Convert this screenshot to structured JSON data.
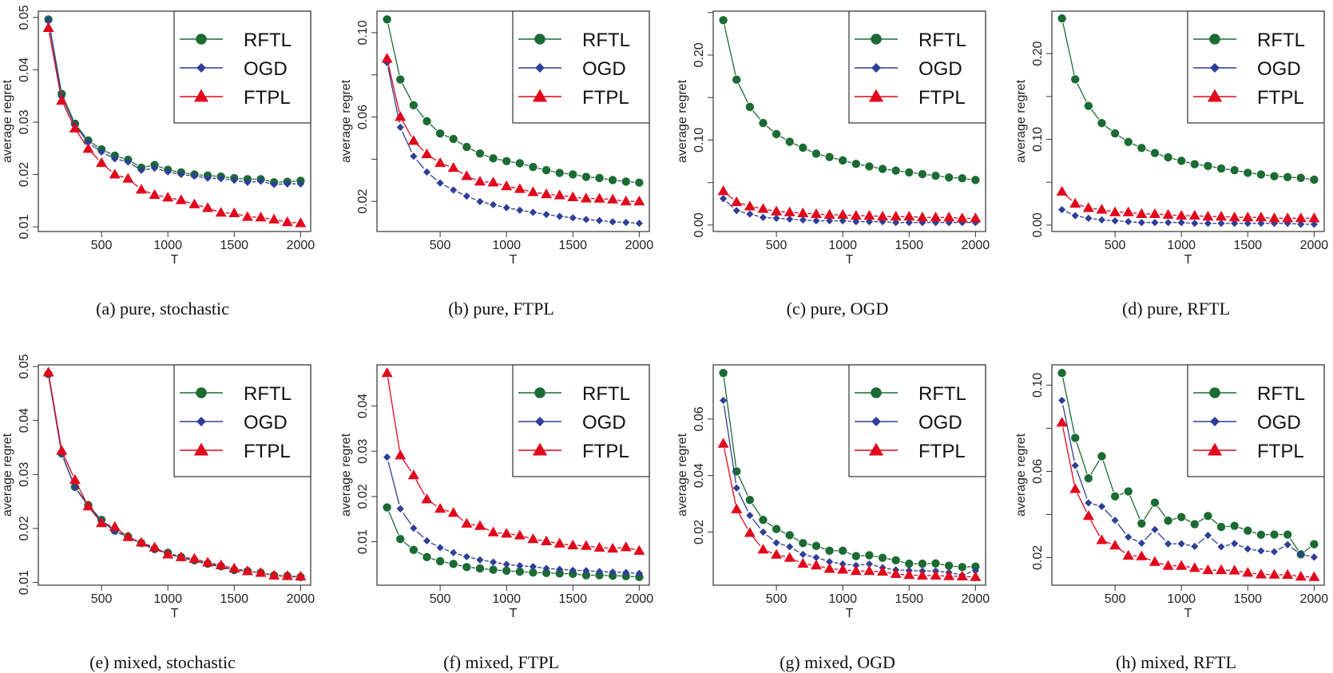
{
  "legend": [
    "RFTL",
    "OGD",
    "FTPL"
  ],
  "colors": {
    "RFTL": "#1b6b33",
    "OGD": "#2f3f98",
    "FTPL": "#e2061c"
  },
  "markers": {
    "RFTL": "circle",
    "OGD": "diamond",
    "FTPL": "triangle"
  },
  "chart_data": [
    {
      "type": "line",
      "caption": "(a) pure, stochastic",
      "xlabel": "T",
      "ylabel": "average regret",
      "x": [
        100,
        200,
        300,
        400,
        500,
        600,
        700,
        800,
        900,
        1000,
        1100,
        1200,
        1300,
        1400,
        1500,
        1600,
        1700,
        1800,
        1900,
        2000
      ],
      "xlim": [
        24,
        2076
      ],
      "xticks": [
        500,
        1000,
        1500,
        2000
      ],
      "xtick_labels": [
        "500",
        "1000",
        "1500",
        "2000"
      ],
      "ylim": [
        0.0091,
        0.0512
      ],
      "yticks": [
        0.01,
        0.02,
        0.03,
        0.04,
        0.05
      ],
      "ytick_labels": [
        "0.01",
        "0.02",
        "0.03",
        "0.04",
        "0.05"
      ],
      "grid": false,
      "legend_position": "top-right",
      "series": [
        {
          "name": "RFTL",
          "values": [
            0.0496,
            0.0354,
            0.0297,
            0.0265,
            0.0248,
            0.0236,
            0.0228,
            0.0213,
            0.0218,
            0.0209,
            0.0204,
            0.02,
            0.0198,
            0.0196,
            0.0193,
            0.0191,
            0.0191,
            0.0185,
            0.0186,
            0.0188
          ]
        },
        {
          "name": "OGD",
          "values": [
            0.0495,
            0.0348,
            0.0294,
            0.0261,
            0.0243,
            0.023,
            0.0224,
            0.0208,
            0.0212,
            0.0205,
            0.02,
            0.0197,
            0.0193,
            0.0192,
            0.0189,
            0.0185,
            0.0187,
            0.0181,
            0.0182,
            0.0182
          ]
        },
        {
          "name": "FTPL",
          "values": [
            0.048,
            0.0341,
            0.0288,
            0.0249,
            0.0222,
            0.02,
            0.0192,
            0.0171,
            0.0161,
            0.0156,
            0.0151,
            0.0143,
            0.0136,
            0.0127,
            0.0126,
            0.0119,
            0.0118,
            0.0114,
            0.0109,
            0.0107
          ]
        }
      ]
    },
    {
      "type": "line",
      "caption": "(b) pure, FTPL",
      "xlabel": "T",
      "ylabel": "average regret",
      "x": [
        100,
        200,
        300,
        400,
        500,
        600,
        700,
        800,
        900,
        1000,
        1100,
        1200,
        1300,
        1400,
        1500,
        1600,
        1700,
        1800,
        1900,
        2000
      ],
      "xlim": [
        24,
        2076
      ],
      "xticks": [
        500,
        1000,
        1500,
        2000
      ],
      "xtick_labels": [
        "500",
        "1000",
        "1500",
        "2000"
      ],
      "ylim": [
        0.0057,
        0.1102
      ],
      "yticks": [
        0.02,
        0.04,
        0.06,
        0.08,
        0.1
      ],
      "ytick_labels": [
        "0.02",
        "",
        "0.06",
        "",
        "0.10"
      ],
      "grid": false,
      "legend_position": "top-right",
      "series": [
        {
          "name": "RFTL",
          "values": [
            0.1063,
            0.0778,
            0.0656,
            0.058,
            0.0522,
            0.0496,
            0.0458,
            0.0427,
            0.0404,
            0.0391,
            0.0381,
            0.0363,
            0.0348,
            0.0335,
            0.0328,
            0.0316,
            0.0311,
            0.0301,
            0.0294,
            0.0289
          ]
        },
        {
          "name": "OGD",
          "values": [
            0.0858,
            0.0551,
            0.0414,
            0.0339,
            0.0287,
            0.0254,
            0.0225,
            0.0199,
            0.0184,
            0.017,
            0.0158,
            0.0148,
            0.0138,
            0.0129,
            0.0122,
            0.0114,
            0.0109,
            0.0103,
            0.01,
            0.0096
          ]
        },
        {
          "name": "FTPL",
          "values": [
            0.0877,
            0.0601,
            0.0487,
            0.0424,
            0.0382,
            0.0359,
            0.032,
            0.0294,
            0.029,
            0.0272,
            0.0259,
            0.0244,
            0.0234,
            0.0229,
            0.022,
            0.0214,
            0.0213,
            0.0209,
            0.02,
            0.02
          ]
        }
      ]
    },
    {
      "type": "line",
      "caption": "(c) pure, OGD",
      "xlabel": "T",
      "ylabel": "average regret",
      "x": [
        100,
        200,
        300,
        400,
        500,
        600,
        700,
        800,
        900,
        1000,
        1100,
        1200,
        1300,
        1400,
        1500,
        1600,
        1700,
        1800,
        1900,
        2000
      ],
      "xlim": [
        24,
        2076
      ],
      "xticks": [
        500,
        1000,
        1500,
        2000
      ],
      "xtick_labels": [
        "500",
        "1000",
        "1500",
        "2000"
      ],
      "ylim": [
        -0.0076,
        0.2516
      ],
      "yticks": [
        0.0,
        0.05,
        0.1,
        0.15,
        0.2,
        0.25
      ],
      "ytick_labels": [
        "0.00",
        "",
        "0.10",
        "",
        "0.20",
        ""
      ],
      "grid": false,
      "legend_position": "top-right",
      "series": [
        {
          "name": "RFTL",
          "values": [
            0.241,
            0.171,
            0.139,
            0.12,
            0.107,
            0.098,
            0.091,
            0.084,
            0.08,
            0.076,
            0.072,
            0.069,
            0.066,
            0.064,
            0.062,
            0.06,
            0.058,
            0.056,
            0.055,
            0.053
          ]
        },
        {
          "name": "OGD",
          "values": [
            0.031,
            0.017,
            0.013,
            0.009,
            0.008,
            0.007,
            0.006,
            0.005,
            0.005,
            0.005,
            0.004,
            0.004,
            0.004,
            0.003,
            0.003,
            0.003,
            0.003,
            0.003,
            0.003,
            0.003
          ]
        },
        {
          "name": "FTPL",
          "values": [
            0.04,
            0.027,
            0.022,
            0.019,
            0.016,
            0.015,
            0.014,
            0.013,
            0.012,
            0.012,
            0.011,
            0.011,
            0.01,
            0.01,
            0.01,
            0.009,
            0.009,
            0.009,
            0.008,
            0.008
          ]
        }
      ]
    },
    {
      "type": "line",
      "caption": "(d) pure, RFTL",
      "xlabel": "T",
      "ylabel": "average regret",
      "x": [
        100,
        200,
        300,
        400,
        500,
        600,
        700,
        800,
        900,
        1000,
        1100,
        1200,
        1300,
        1400,
        1500,
        1600,
        1700,
        1800,
        1900,
        2000
      ],
      "xlim": [
        24,
        2076
      ],
      "xticks": [
        500,
        1000,
        1500,
        2000
      ],
      "xtick_labels": [
        "500",
        "1000",
        "1500",
        "2000"
      ],
      "ylim": [
        -0.0075,
        0.2495
      ],
      "yticks": [
        0.0,
        0.05,
        0.1,
        0.15,
        0.2
      ],
      "ytick_labels": [
        "0.00",
        "",
        "0.10",
        "",
        "0.20"
      ],
      "grid": false,
      "legend_position": "top-right",
      "series": [
        {
          "name": "RFTL",
          "values": [
            0.241,
            0.17,
            0.139,
            0.119,
            0.107,
            0.097,
            0.09,
            0.084,
            0.079,
            0.075,
            0.071,
            0.069,
            0.066,
            0.064,
            0.061,
            0.059,
            0.057,
            0.056,
            0.055,
            0.053
          ]
        },
        {
          "name": "OGD",
          "values": [
            0.018,
            0.011,
            0.008,
            0.006,
            0.005,
            0.004,
            0.003,
            0.003,
            0.003,
            0.003,
            0.002,
            0.002,
            0.002,
            0.002,
            0.002,
            0.002,
            0.002,
            0.002,
            0.001,
            0.001
          ]
        },
        {
          "name": "FTPL",
          "values": [
            0.039,
            0.025,
            0.02,
            0.018,
            0.015,
            0.015,
            0.013,
            0.013,
            0.012,
            0.011,
            0.011,
            0.01,
            0.01,
            0.009,
            0.009,
            0.009,
            0.008,
            0.008,
            0.008,
            0.008
          ]
        }
      ]
    },
    {
      "type": "line",
      "caption": "(e) mixed, stochastic",
      "xlabel": "T",
      "ylabel": "average regret",
      "x": [
        100,
        200,
        300,
        400,
        500,
        600,
        700,
        800,
        900,
        1000,
        1100,
        1200,
        1300,
        1400,
        1500,
        1600,
        1700,
        1800,
        1900,
        2000
      ],
      "xlim": [
        24,
        2076
      ],
      "xticks": [
        500,
        1000,
        1500,
        2000
      ],
      "xtick_labels": [
        "500",
        "1000",
        "1500",
        "2000"
      ],
      "ylim": [
        0.0095,
        0.0503
      ],
      "yticks": [
        0.01,
        0.02,
        0.03,
        0.04,
        0.05
      ],
      "ytick_labels": [
        "0.01",
        "0.02",
        "0.03",
        "0.04",
        "0.05"
      ],
      "grid": false,
      "legend_position": "top-right",
      "series": [
        {
          "name": "RFTL",
          "values": [
            0.0486,
            0.0339,
            0.0277,
            0.0243,
            0.0216,
            0.0196,
            0.0185,
            0.0173,
            0.0162,
            0.0155,
            0.0147,
            0.0141,
            0.0135,
            0.013,
            0.0123,
            0.0121,
            0.0118,
            0.0113,
            0.0112,
            0.011
          ]
        },
        {
          "name": "OGD",
          "values": [
            0.0485,
            0.0338,
            0.0276,
            0.0242,
            0.0214,
            0.0195,
            0.0184,
            0.0172,
            0.0161,
            0.0154,
            0.0146,
            0.014,
            0.0134,
            0.0129,
            0.0123,
            0.0121,
            0.0118,
            0.0113,
            0.0111,
            0.011
          ]
        },
        {
          "name": "FTPL",
          "values": [
            0.0489,
            0.0344,
            0.029,
            0.0241,
            0.021,
            0.0203,
            0.0184,
            0.0174,
            0.0165,
            0.0152,
            0.0147,
            0.0144,
            0.0137,
            0.0132,
            0.0126,
            0.0121,
            0.0118,
            0.0113,
            0.0112,
            0.0111
          ]
        }
      ]
    },
    {
      "type": "line",
      "caption": "(f) mixed, FTPL",
      "xlabel": "T",
      "ylabel": "average regret",
      "x": [
        100,
        200,
        300,
        400,
        500,
        600,
        700,
        800,
        900,
        1000,
        1100,
        1200,
        1300,
        1400,
        1500,
        1600,
        1700,
        1800,
        1900,
        2000
      ],
      "xlim": [
        24,
        2076
      ],
      "xticks": [
        500,
        1000,
        1500,
        2000
      ],
      "xtick_labels": [
        "500",
        "1000",
        "1500",
        "2000"
      ],
      "ylim": [
        0.0004,
        0.0491
      ],
      "yticks": [
        0.01,
        0.02,
        0.03,
        0.04
      ],
      "ytick_labels": [
        "0.01",
        "0.02",
        "0.03",
        "0.04"
      ],
      "grid": false,
      "legend_position": "top-right",
      "series": [
        {
          "name": "RFTL",
          "values": [
            0.0176,
            0.0106,
            0.0082,
            0.0066,
            0.0057,
            0.0051,
            0.0044,
            0.0041,
            0.0038,
            0.0036,
            0.0034,
            0.0032,
            0.0031,
            0.003,
            0.0029,
            0.0026,
            0.0026,
            0.0025,
            0.0024,
            0.0022
          ]
        },
        {
          "name": "OGD",
          "values": [
            0.0287,
            0.0173,
            0.013,
            0.0102,
            0.0087,
            0.0076,
            0.0067,
            0.006,
            0.0055,
            0.005,
            0.0047,
            0.0045,
            0.0041,
            0.0039,
            0.0037,
            0.0036,
            0.0034,
            0.0033,
            0.0032,
            0.003
          ]
        },
        {
          "name": "FTPL",
          "values": [
            0.0473,
            0.0291,
            0.0247,
            0.0194,
            0.0173,
            0.0164,
            0.014,
            0.0135,
            0.0121,
            0.0118,
            0.0114,
            0.0106,
            0.0101,
            0.0096,
            0.0092,
            0.0091,
            0.0087,
            0.0085,
            0.0088,
            0.008
          ]
        }
      ]
    },
    {
      "type": "line",
      "caption": "(g) mixed, OGD",
      "xlabel": "T",
      "ylabel": "average regret",
      "x": [
        100,
        200,
        300,
        400,
        500,
        600,
        700,
        800,
        900,
        1000,
        1100,
        1200,
        1300,
        1400,
        1500,
        1600,
        1700,
        1800,
        1900,
        2000
      ],
      "xlim": [
        24,
        2076
      ],
      "xticks": [
        500,
        1000,
        1500,
        2000
      ],
      "xtick_labels": [
        "500",
        "1000",
        "1500",
        "2000"
      ],
      "ylim": [
        0.0012,
        0.0792
      ],
      "yticks": [
        0.02,
        0.04,
        0.06
      ],
      "ytick_labels": [
        "0.02",
        "0.04",
        "0.06"
      ],
      "grid": false,
      "legend_position": "top-right",
      "series": [
        {
          "name": "RFTL",
          "values": [
            0.0763,
            0.0415,
            0.0314,
            0.0243,
            0.0211,
            0.0189,
            0.0161,
            0.0151,
            0.0134,
            0.0134,
            0.0115,
            0.0118,
            0.0109,
            0.01,
            0.0088,
            0.0088,
            0.0089,
            0.0081,
            0.0076,
            0.0078
          ]
        },
        {
          "name": "OGD",
          "values": [
            0.0666,
            0.0356,
            0.0259,
            0.02,
            0.0162,
            0.0148,
            0.0121,
            0.011,
            0.0095,
            0.0087,
            0.0082,
            0.0087,
            0.0074,
            0.0066,
            0.0064,
            0.0062,
            0.0062,
            0.0057,
            0.0048,
            0.0063
          ]
        },
        {
          "name": "FTPL",
          "values": [
            0.0513,
            0.0281,
            0.0197,
            0.0138,
            0.012,
            0.0109,
            0.0088,
            0.0082,
            0.007,
            0.0067,
            0.0062,
            0.0062,
            0.006,
            0.0052,
            0.0048,
            0.0046,
            0.0046,
            0.0044,
            0.0043,
            0.0041
          ]
        }
      ]
    },
    {
      "type": "line",
      "caption": "(h) mixed, RFTL",
      "xlabel": "T",
      "ylabel": "average regret",
      "x": [
        100,
        200,
        300,
        400,
        500,
        600,
        700,
        800,
        900,
        1000,
        1100,
        1200,
        1300,
        1400,
        1500,
        1600,
        1700,
        1800,
        1900,
        2000
      ],
      "xlim": [
        24,
        2076
      ],
      "xticks": [
        500,
        1000,
        1500,
        2000
      ],
      "xtick_labels": [
        "500",
        "1000",
        "1500",
        "2000"
      ],
      "ylim": [
        0.0072,
        0.1094
      ],
      "yticks": [
        0.02,
        0.04,
        0.06,
        0.08,
        0.1
      ],
      "ytick_labels": [
        "0.02",
        "",
        "0.06",
        "",
        "0.10"
      ],
      "grid": false,
      "legend_position": "top-right",
      "series": [
        {
          "name": "RFTL",
          "values": [
            0.1056,
            0.0755,
            0.0568,
            0.067,
            0.0484,
            0.0507,
            0.0358,
            0.0455,
            0.0371,
            0.0388,
            0.0355,
            0.0393,
            0.0342,
            0.0347,
            0.0325,
            0.0306,
            0.0307,
            0.0307,
            0.0215,
            0.0262
          ]
        },
        {
          "name": "OGD",
          "values": [
            0.0929,
            0.0627,
            0.0454,
            0.0437,
            0.0373,
            0.0295,
            0.0267,
            0.033,
            0.0264,
            0.0264,
            0.0252,
            0.0303,
            0.025,
            0.0265,
            0.024,
            0.0231,
            0.0227,
            0.026,
            0.0215,
            0.0202
          ]
        },
        {
          "name": "FTPL",
          "values": [
            0.0826,
            0.0518,
            0.0393,
            0.0281,
            0.0256,
            0.0209,
            0.0206,
            0.018,
            0.0162,
            0.0162,
            0.0152,
            0.0142,
            0.0142,
            0.014,
            0.013,
            0.0122,
            0.0121,
            0.012,
            0.0112,
            0.011
          ]
        }
      ]
    }
  ]
}
